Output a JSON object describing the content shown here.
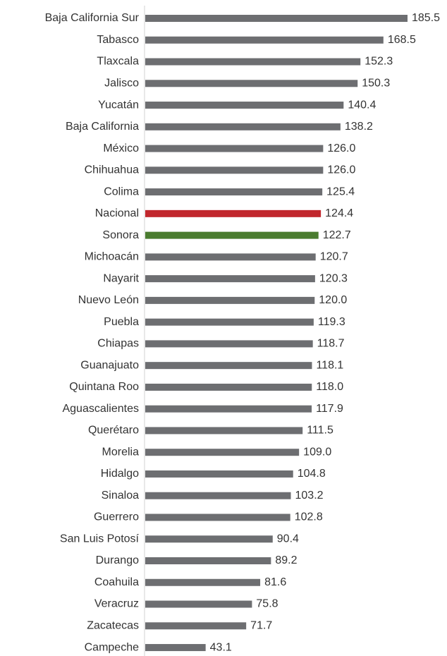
{
  "chart_data": {
    "type": "hbar",
    "categories": [
      "Baja California Sur",
      "Tabasco",
      "Tlaxcala",
      "Jalisco",
      "Yucatán",
      "Baja California",
      "México",
      "Chihuahua",
      "Colima",
      "Nacional",
      "Sonora",
      "Michoacán",
      "Nayarit",
      "Nuevo León",
      "Puebla",
      "Chiapas",
      "Guanajuato",
      "Quintana Roo",
      "Aguascalientes",
      "Querétaro",
      "Morelia",
      "Hidalgo",
      "Sinaloa",
      "Guerrero",
      "San Luis Potosí",
      "Durango",
      "Coahuila",
      "Veracruz",
      "Zacatecas",
      "Campeche"
    ],
    "values": [
      185.5,
      168.5,
      152.3,
      150.3,
      140.4,
      138.2,
      126.0,
      126.0,
      125.4,
      124.4,
      122.7,
      120.7,
      120.3,
      120.0,
      119.3,
      118.7,
      118.1,
      118.0,
      117.9,
      111.5,
      109.0,
      104.8,
      103.2,
      102.8,
      90.4,
      89.2,
      81.6,
      75.8,
      71.7,
      43.1
    ],
    "value_labels": [
      "185.5",
      "168.5",
      "152.3",
      "150.3",
      "140.4",
      "138.2",
      "126.0",
      "126.0",
      "125.4",
      "124.4",
      "122.7",
      "120.7",
      "120.3",
      "120.0",
      "119.3",
      "118.7",
      "118.1",
      "118.0",
      "117.9",
      "111.5",
      "109.0",
      "104.8",
      "103.2",
      "102.8",
      "90.4",
      "89.2",
      "81.6",
      "75.8",
      "71.7",
      "43.1"
    ],
    "colors": [
      "#6d6e71",
      "#6d6e71",
      "#6d6e71",
      "#6d6e71",
      "#6d6e71",
      "#6d6e71",
      "#6d6e71",
      "#6d6e71",
      "#6d6e71",
      "#c1272d",
      "#4a7c2f",
      "#6d6e71",
      "#6d6e71",
      "#6d6e71",
      "#6d6e71",
      "#6d6e71",
      "#6d6e71",
      "#6d6e71",
      "#6d6e71",
      "#6d6e71",
      "#6d6e71",
      "#6d6e71",
      "#6d6e71",
      "#6d6e71",
      "#6d6e71",
      "#6d6e71",
      "#6d6e71",
      "#6d6e71",
      "#6d6e71",
      "#6d6e71"
    ]
  }
}
